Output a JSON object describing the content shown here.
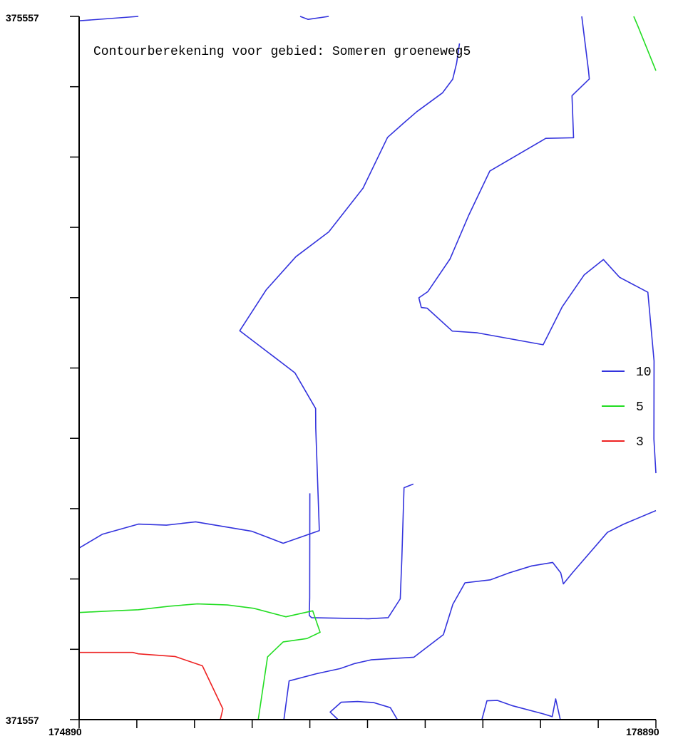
{
  "chart_data": {
    "type": "line",
    "title": "Contourberekening voor gebied: Someren groeneweg5",
    "xlim": [
      174890,
      178890
    ],
    "ylim": [
      371557,
      375557
    ],
    "x_tick_labels": [
      "174890",
      "178890"
    ],
    "y_tick_labels": [
      "375557",
      "371557"
    ],
    "x_minor_tick_count": 11,
    "y_minor_tick_count": 11,
    "legend_position": "right",
    "legend": [
      {
        "label": "10",
        "color": "#3333dd"
      },
      {
        "label": "5",
        "color": "#22dd22"
      },
      {
        "label": "3",
        "color": "#ee2222"
      }
    ],
    "series": [
      {
        "legend": "10",
        "color": "#3333dd",
        "points": [
          [
            174890,
            375532
          ],
          [
            175301,
            375557
          ]
        ]
      },
      {
        "legend": "10",
        "color": "#3333dd",
        "points": [
          [
            176423,
            375557
          ],
          [
            176478,
            375540
          ],
          [
            176621,
            375557
          ]
        ]
      },
      {
        "legend": "10",
        "color": "#3333dd",
        "points": [
          [
            178376,
            375557
          ],
          [
            178423,
            375247
          ],
          [
            178428,
            375201
          ],
          [
            178308,
            375106
          ],
          [
            178319,
            374867
          ],
          [
            178126,
            374863
          ],
          [
            177738,
            374677
          ],
          [
            177593,
            374428
          ],
          [
            177462,
            374177
          ],
          [
            177308,
            373991
          ],
          [
            177246,
            373956
          ],
          [
            177263,
            373901
          ],
          [
            177304,
            373897
          ],
          [
            177478,
            373767
          ],
          [
            177651,
            373757
          ],
          [
            178108,
            373689
          ],
          [
            178241,
            373906
          ],
          [
            178393,
            374087
          ],
          [
            178526,
            374174
          ],
          [
            178638,
            374073
          ],
          [
            178834,
            373988
          ],
          [
            178877,
            373597
          ],
          [
            178876,
            373152
          ],
          [
            178890,
            372959
          ]
        ]
      },
      {
        "legend": "10",
        "color": "#3333dd",
        "points": [
          [
            174890,
            372533
          ],
          [
            175050,
            372611
          ],
          [
            175301,
            372669
          ],
          [
            175495,
            372663
          ],
          [
            175698,
            372682
          ],
          [
            176089,
            372628
          ],
          [
            176305,
            372560
          ],
          [
            176556,
            372632
          ],
          [
            176531,
            373214
          ],
          [
            176530,
            373327
          ],
          [
            176386,
            373530
          ],
          [
            176004,
            373769
          ],
          [
            176187,
            374001
          ],
          [
            176393,
            374190
          ],
          [
            176621,
            374331
          ],
          [
            176859,
            374580
          ],
          [
            177029,
            374869
          ],
          [
            177136,
            374947
          ],
          [
            177232,
            375015
          ],
          [
            177410,
            375122
          ],
          [
            177481,
            375200
          ],
          [
            177508,
            375292
          ],
          [
            177528,
            375403
          ]
        ]
      },
      {
        "legend": "10",
        "color": "#3333dd",
        "points": [
          [
            176490,
            372844
          ],
          [
            176489,
            372249
          ],
          [
            176486,
            372150
          ],
          [
            176502,
            372137
          ],
          [
            176890,
            372131
          ],
          [
            176899,
            372131
          ],
          [
            177033,
            372137
          ],
          [
            177117,
            372244
          ],
          [
            177128,
            372469
          ],
          [
            177143,
            372876
          ],
          [
            177208,
            372897
          ]
        ]
      },
      {
        "legend": "10",
        "color": "#3333dd",
        "points": [
          [
            176310,
            371557
          ],
          [
            176346,
            371777
          ],
          [
            176535,
            371818
          ],
          [
            176700,
            371847
          ],
          [
            176801,
            371876
          ],
          [
            176914,
            371897
          ],
          [
            177212,
            371912
          ],
          [
            177416,
            372040
          ],
          [
            177482,
            372213
          ],
          [
            177566,
            372335
          ],
          [
            177743,
            372352
          ],
          [
            177873,
            372392
          ],
          [
            178028,
            372431
          ],
          [
            178174,
            372451
          ],
          [
            178230,
            372392
          ],
          [
            178248,
            372329
          ],
          [
            178311,
            372392
          ],
          [
            178554,
            372622
          ],
          [
            178664,
            372668
          ],
          [
            178890,
            372746
          ]
        ]
      },
      {
        "legend": "10",
        "color": "#3333dd",
        "points": [
          [
            176686,
            371557
          ],
          [
            176631,
            371600
          ],
          [
            176707,
            371656
          ],
          [
            176821,
            371660
          ],
          [
            176933,
            371654
          ],
          [
            177048,
            371625
          ],
          [
            177097,
            371557
          ]
        ]
      },
      {
        "legend": "10",
        "color": "#3333dd",
        "points": [
          [
            177683,
            371557
          ],
          [
            177718,
            371664
          ],
          [
            177792,
            371666
          ],
          [
            177891,
            371637
          ],
          [
            178108,
            371590
          ],
          [
            178171,
            371574
          ],
          [
            178195,
            371675
          ],
          [
            178227,
            371557
          ]
        ]
      },
      {
        "legend": "5",
        "color": "#22dd22",
        "points": [
          [
            178736,
            375557
          ],
          [
            178766,
            375500
          ],
          [
            178890,
            375248
          ]
        ]
      },
      {
        "legend": "5",
        "color": "#22dd22",
        "points": [
          [
            174890,
            372166
          ],
          [
            175079,
            372174
          ],
          [
            175301,
            372182
          ],
          [
            175517,
            372202
          ],
          [
            175710,
            372215
          ],
          [
            175918,
            372209
          ],
          [
            176102,
            372190
          ],
          [
            176324,
            372142
          ],
          [
            176510,
            372176
          ],
          [
            176561,
            372054
          ],
          [
            176470,
            372018
          ],
          [
            176305,
            371999
          ],
          [
            176197,
            371914
          ],
          [
            176132,
            371557
          ]
        ]
      },
      {
        "legend": "3",
        "color": "#ee2222",
        "points": [
          [
            174890,
            371939
          ],
          [
            175262,
            371939
          ],
          [
            175301,
            371931
          ],
          [
            175555,
            371916
          ],
          [
            175745,
            371863
          ],
          [
            175887,
            371618
          ],
          [
            175869,
            371557
          ]
        ]
      }
    ]
  }
}
